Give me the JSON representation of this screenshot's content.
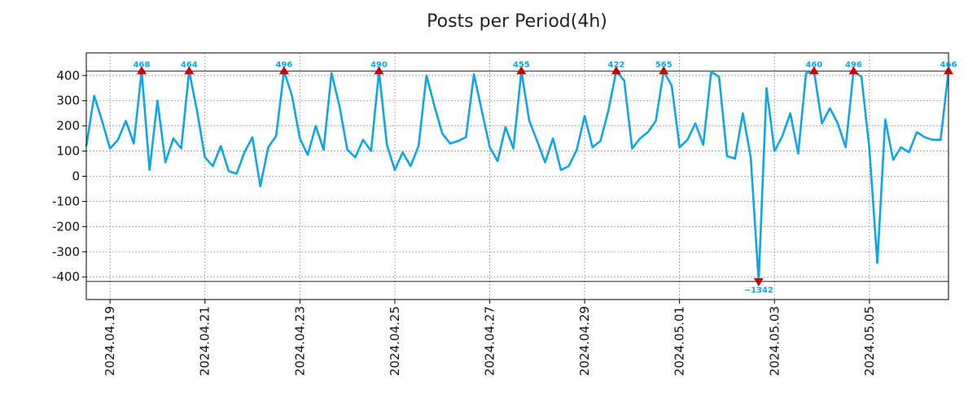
{
  "chart_data": {
    "type": "line",
    "title": "Posts per Period(4h)",
    "xlabel": "",
    "ylabel": "",
    "ylim": [
      -490,
      490
    ],
    "yticks": [
      400,
      300,
      200,
      100,
      0,
      -100,
      -200,
      -300,
      -400
    ],
    "ytick_labels": [
      "400",
      "300",
      "200",
      "100",
      "0",
      "-100",
      "-200",
      "-300",
      "-400"
    ],
    "xlim": [
      0,
      109
    ],
    "x_period_hours": 4,
    "x_start": "2024.04.18 12:00",
    "xticks": [
      3,
      15,
      27,
      39,
      51,
      63,
      75,
      87,
      99
    ],
    "xtick_labels": [
      "2024.04.19",
      "2024.04.21",
      "2024.04.23",
      "2024.04.25",
      "2024.04.27",
      "2024.04.29",
      "2024.05.01",
      "2024.05.03",
      "2024.05.05"
    ],
    "grid": true,
    "clip_value": 418,
    "reference_lines": [
      418,
      -418
    ],
    "series": [
      {
        "name": "posts",
        "color": "#0ea5e9",
        "values": [
          120,
          320,
          220,
          110,
          145,
          220,
          130,
          418,
          25,
          300,
          55,
          150,
          110,
          418,
          260,
          75,
          40,
          120,
          20,
          10,
          95,
          155,
          -40,
          115,
          160,
          418,
          320,
          150,
          85,
          200,
          105,
          410,
          280,
          105,
          75,
          145,
          100,
          418,
          125,
          25,
          95,
          40,
          120,
          400,
          280,
          170,
          130,
          140,
          155,
          405,
          260,
          115,
          60,
          195,
          110,
          418,
          220,
          140,
          55,
          150,
          25,
          40,
          105,
          240,
          115,
          140,
          260,
          418,
          380,
          110,
          150,
          175,
          220,
          418,
          360,
          115,
          145,
          210,
          125,
          415,
          395,
          80,
          70,
          250,
          75,
          -418,
          350,
          100,
          160,
          250,
          90,
          410,
          418,
          210,
          270,
          210,
          115,
          418,
          395,
          110,
          -345,
          225,
          65,
          115,
          95,
          175,
          155,
          145,
          145,
          418
        ]
      }
    ],
    "annotations": [
      {
        "x": 7,
        "value": 418,
        "label": "468",
        "direction": "up"
      },
      {
        "x": 13,
        "value": 418,
        "label": "464",
        "direction": "up"
      },
      {
        "x": 25,
        "value": 418,
        "label": "496",
        "direction": "up"
      },
      {
        "x": 37,
        "value": 418,
        "label": "490",
        "direction": "up"
      },
      {
        "x": 55,
        "value": 418,
        "label": "455",
        "direction": "up"
      },
      {
        "x": 67,
        "value": 418,
        "label": "422",
        "direction": "up"
      },
      {
        "x": 73,
        "value": 418,
        "label": "565",
        "direction": "up"
      },
      {
        "x": 85,
        "value": -418,
        "label": "−1342",
        "direction": "down"
      },
      {
        "x": 92,
        "value": 418,
        "label": "460",
        "direction": "up"
      },
      {
        "x": 97,
        "value": 418,
        "label": "496",
        "direction": "up"
      },
      {
        "x": 109,
        "value": 418,
        "label": "466",
        "direction": "up"
      }
    ],
    "marker_color": "#cc0000",
    "label_color": "#0ea5e9"
  }
}
